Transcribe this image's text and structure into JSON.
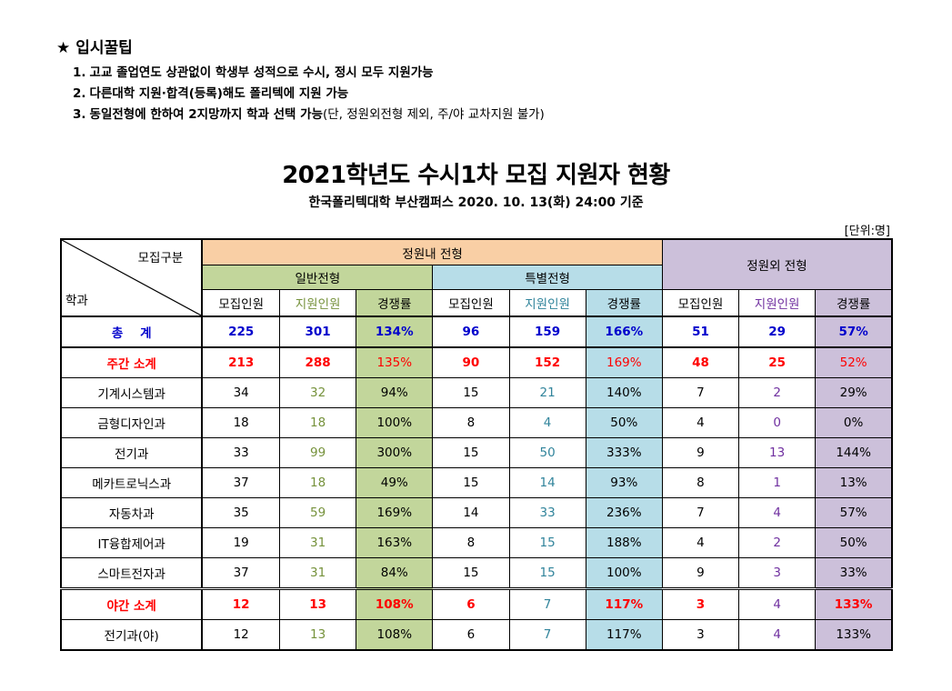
{
  "tips": {
    "title": "입시꿀팁",
    "items": [
      {
        "num": "1.",
        "bold": "고교 졸업연도 상관없이 학생부 성적으로 수시, 정시 모두 지원가능",
        "rest": ""
      },
      {
        "num": "2.",
        "bold": "다른대학 지원·합격(등록)해도 폴리텍에 지원 가능",
        "rest": ""
      },
      {
        "num": "3.",
        "bold": "동일전형에 한하여 2지망까지 학과 선택 가능",
        "rest": "(단, 정원외전형 제외, 주/야 교차지원 불가)"
      }
    ]
  },
  "title": "2021학년도 수시1차 모집 지원자 현황",
  "subtitle": "한국폴리텍대학 부산캠퍼스  2020. 10. 13(화) 24:00 기준",
  "unit": "[단위:명]",
  "table": {
    "corner_top": "모집구분",
    "corner_bottom": "학과",
    "group_in": "정원내 전형",
    "group_general": "일반전형",
    "group_special": "특별전형",
    "group_out": "정원외 전형",
    "col_quota": "모집인원",
    "col_applicants": "지원인원",
    "col_ratio": "경쟁률",
    "rows": [
      {
        "name": "총    계",
        "kind": "total",
        "v": [
          "225",
          "301",
          "134%",
          "96",
          "159",
          "166%",
          "51",
          "29",
          "57%"
        ]
      },
      {
        "name": "주간 소계",
        "kind": "subtotal",
        "v": [
          "213",
          "288",
          "135%",
          "90",
          "152",
          "169%",
          "48",
          "25",
          "52%"
        ]
      },
      {
        "name": "기계시스템과",
        "kind": "normal",
        "v": [
          "34",
          "32",
          "94%",
          "15",
          "21",
          "140%",
          "7",
          "2",
          "29%"
        ]
      },
      {
        "name": "금형디자인과",
        "kind": "normal",
        "v": [
          "18",
          "18",
          "100%",
          "8",
          "4",
          "50%",
          "4",
          "0",
          "0%"
        ]
      },
      {
        "name": "전기과",
        "kind": "normal",
        "v": [
          "33",
          "99",
          "300%",
          "15",
          "50",
          "333%",
          "9",
          "13",
          "144%"
        ]
      },
      {
        "name": "메카트로닉스과",
        "kind": "normal",
        "v": [
          "37",
          "18",
          "49%",
          "15",
          "14",
          "93%",
          "8",
          "1",
          "13%"
        ]
      },
      {
        "name": "자동차과",
        "kind": "normal",
        "v": [
          "35",
          "59",
          "169%",
          "14",
          "33",
          "236%",
          "7",
          "4",
          "57%"
        ]
      },
      {
        "name": "IT융합제어과",
        "kind": "normal",
        "v": [
          "19",
          "31",
          "163%",
          "8",
          "15",
          "188%",
          "4",
          "2",
          "50%"
        ]
      },
      {
        "name": "스마트전자과",
        "kind": "normal",
        "v": [
          "37",
          "31",
          "84%",
          "15",
          "15",
          "100%",
          "9",
          "3",
          "33%"
        ]
      },
      {
        "name": "야간 소계",
        "kind": "night",
        "v": [
          "12",
          "13",
          "108%",
          "6",
          "7",
          "117%",
          "3",
          "4",
          "133%"
        ]
      },
      {
        "name": "전기과(야)",
        "kind": "normal",
        "v": [
          "12",
          "13",
          "108%",
          "6",
          "7",
          "117%",
          "3",
          "4",
          "133%"
        ]
      }
    ]
  }
}
